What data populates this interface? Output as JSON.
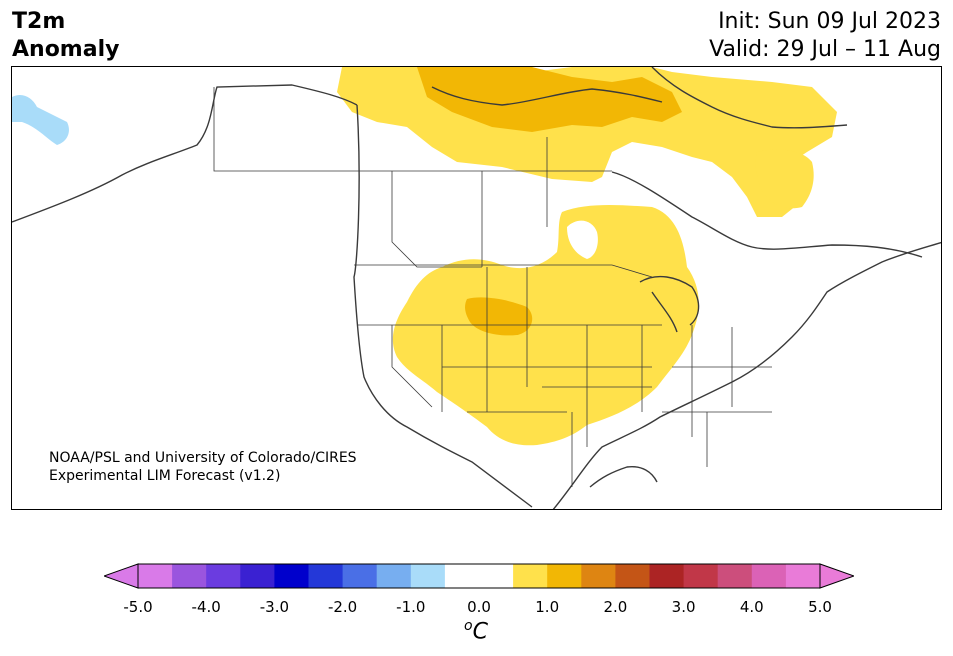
{
  "title": {
    "line1": "T2m",
    "line2": "Anomaly"
  },
  "subtitle": {
    "init": "Init: Sun 09 Jul 2023",
    "valid": "Valid: 29 Jul – 11 Aug"
  },
  "credit": {
    "line1": "NOAA/PSL and University of Colorado/CIRES",
    "line2": "Experimental LIM Forecast (v1.2)"
  },
  "colorbar": {
    "unit_base": "C",
    "unit_sup": "o",
    "ticks": [
      "-5.0",
      "-4.0",
      "-3.0",
      "-2.0",
      "-1.0",
      "0.0",
      "1.0",
      "2.0",
      "3.0",
      "4.0",
      "5.0"
    ],
    "colors": [
      "#d97ae8",
      "#9a55de",
      "#6b3ce0",
      "#3a21d2",
      "#0000cc",
      "#2438d8",
      "#4a6fe6",
      "#77aef0",
      "#a9dcf9",
      "#ffffff",
      "#ffffff",
      "#ffe14b",
      "#f2b705",
      "#de8512",
      "#c45516",
      "#ac2424",
      "#c13748",
      "#cc4e7c",
      "#db62b6",
      "#e97bd8"
    ],
    "extend_low": "#d97ae8",
    "extend_high": "#e97bd8"
  },
  "map_fill": {
    "positive_weak": "#ffe14b",
    "positive_mod": "#f2b705",
    "negative_weak": "#a9dcf9",
    "land_line": "#3a3a3a"
  }
}
